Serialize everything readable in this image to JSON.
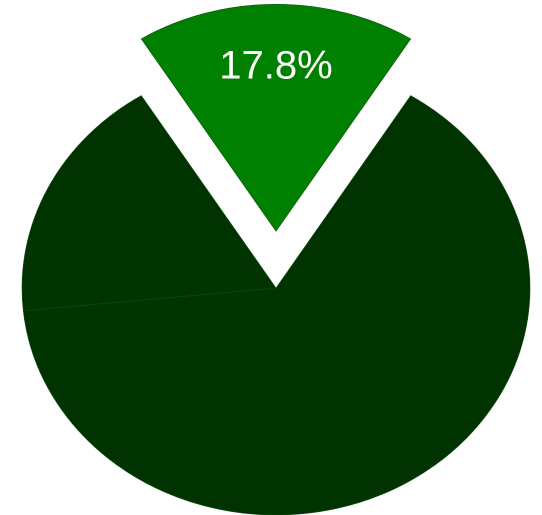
{
  "chart_data": {
    "type": "pie",
    "values": [
      17.8,
      64.5,
      17.7
    ],
    "value_labels": [
      "17.8%",
      null,
      null
    ],
    "colors": [
      "#008000",
      "#003300",
      "#003300"
    ],
    "exploded": [
      true,
      false,
      false
    ]
  }
}
